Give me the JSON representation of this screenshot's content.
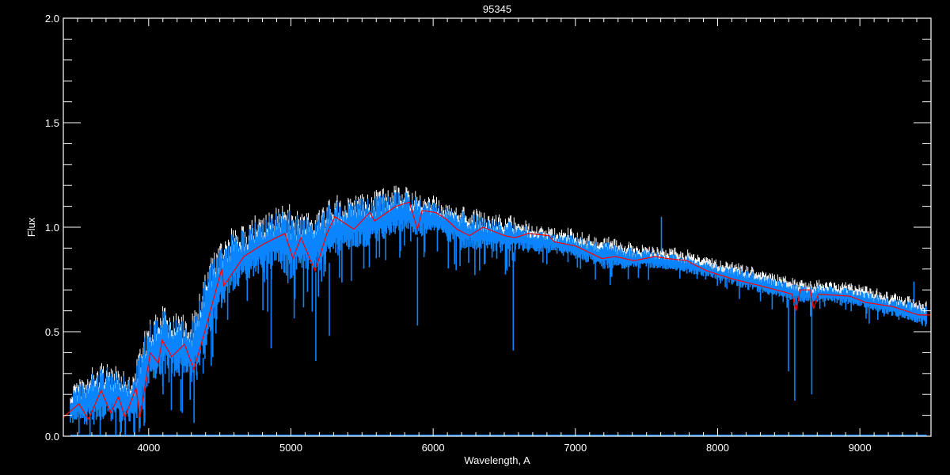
{
  "chart_data": {
    "type": "line",
    "title": "95345",
    "xlabel": "Wavelength, A",
    "ylabel": "Flux",
    "xlim": [
      3400,
      9500
    ],
    "ylim": [
      0,
      2.0
    ],
    "xticks": [
      4000,
      5000,
      6000,
      7000,
      8000,
      9000
    ],
    "xtick_labels": [
      "4000",
      "5000",
      "6000",
      "7000",
      "8000",
      "9000"
    ],
    "yticks": [
      0,
      0.5,
      1.0,
      1.5,
      2.0
    ],
    "ytick_labels": [
      "0.0",
      "0.5",
      "1.0",
      "1.5",
      "2.0"
    ],
    "grid": false,
    "colors": {
      "background": "#000000",
      "axes": "#ffffff",
      "observed": "#0a84ff",
      "reference": "#ffffff",
      "model": "#ff0000"
    },
    "observed_spectrum": {
      "color": "#0a84ff",
      "wavelength": [
        3450,
        3500,
        3600,
        3700,
        3800,
        3900,
        4000,
        4100,
        4200,
        4300,
        4400,
        4500,
        4600,
        4700,
        4800,
        4900,
        5000,
        5100,
        5200,
        5300,
        5400,
        5500,
        5600,
        5700,
        5800,
        5900,
        6000,
        6100,
        6200,
        6400,
        6600,
        6800,
        7000,
        7200,
        7400,
        7600,
        7800,
        8000,
        8200,
        8400,
        8600,
        8800,
        9000,
        9200,
        9400,
        9470
      ],
      "upper": [
        0.2,
        0.25,
        0.3,
        0.35,
        0.3,
        0.3,
        0.55,
        0.6,
        0.58,
        0.55,
        0.78,
        0.9,
        0.98,
        1.0,
        1.05,
        1.08,
        1.08,
        1.05,
        1.08,
        1.12,
        1.14,
        1.15,
        1.15,
        1.17,
        1.17,
        1.14,
        1.12,
        1.1,
        1.08,
        1.04,
        1.02,
        0.98,
        0.96,
        0.93,
        0.9,
        0.88,
        0.86,
        0.82,
        0.8,
        0.75,
        0.72,
        0.72,
        0.7,
        0.66,
        0.64,
        0.62
      ],
      "lower": [
        0.05,
        0.06,
        0.05,
        0.08,
        0.05,
        0.05,
        0.25,
        0.3,
        0.28,
        0.25,
        0.4,
        0.6,
        0.7,
        0.75,
        0.78,
        0.8,
        0.75,
        0.8,
        0.78,
        0.85,
        0.88,
        0.9,
        0.92,
        0.95,
        0.98,
        0.95,
        0.98,
        0.93,
        0.9,
        0.88,
        0.88,
        0.88,
        0.85,
        0.8,
        0.8,
        0.8,
        0.78,
        0.75,
        0.7,
        0.67,
        0.64,
        0.64,
        0.62,
        0.58,
        0.54,
        0.52
      ],
      "deep_lines": [
        [
          3933,
          0.02
        ],
        [
          3968,
          0.05
        ],
        [
          4101,
          0.2
        ],
        [
          4226,
          0.12
        ],
        [
          4340,
          0.27
        ],
        [
          4383,
          0.3
        ],
        [
          4861,
          0.42
        ],
        [
          5175,
          0.36
        ],
        [
          5270,
          0.48
        ],
        [
          5890,
          0.53
        ],
        [
          6563,
          0.41
        ],
        [
          8498,
          0.31
        ],
        [
          8542,
          0.17
        ],
        [
          8662,
          0.2
        ]
      ],
      "spikes": [
        [
          7605,
          1.05
        ],
        [
          9380,
          0.74
        ]
      ],
      "zero_level_range": [
        3450,
        9470
      ]
    },
    "model": {
      "color": "#ff0000",
      "points": [
        [
          3400,
          0.09
        ],
        [
          3450,
          0.12
        ],
        [
          3510,
          0.155
        ],
        [
          3577,
          0.08
        ],
        [
          3666,
          0.22
        ],
        [
          3733,
          0.11
        ],
        [
          3788,
          0.19
        ],
        [
          3833,
          0.09
        ],
        [
          3911,
          0.23
        ],
        [
          3939,
          0.09
        ],
        [
          4011,
          0.4
        ],
        [
          4067,
          0.35
        ],
        [
          4095,
          0.46
        ],
        [
          4162,
          0.38
        ],
        [
          4251,
          0.44
        ],
        [
          4318,
          0.32
        ],
        [
          4390,
          0.49
        ],
        [
          4513,
          0.8
        ],
        [
          4529,
          0.72
        ],
        [
          4669,
          0.86
        ],
        [
          4808,
          0.92
        ],
        [
          4958,
          0.97
        ],
        [
          5014,
          0.85
        ],
        [
          5070,
          0.95
        ],
        [
          5170,
          0.79
        ],
        [
          5253,
          0.97
        ],
        [
          5309,
          1.05
        ],
        [
          5443,
          0.99
        ],
        [
          5554,
          1.07
        ],
        [
          5588,
          1.03
        ],
        [
          5738,
          1.1
        ],
        [
          5833,
          1.12
        ],
        [
          5889,
          0.99
        ],
        [
          5922,
          1.08
        ],
        [
          6017,
          1.07
        ],
        [
          6089,
          1.04
        ],
        [
          6167,
          0.99
        ],
        [
          6256,
          0.96
        ],
        [
          6351,
          1.0
        ],
        [
          6501,
          0.96
        ],
        [
          6574,
          0.95
        ],
        [
          6668,
          0.97
        ],
        [
          6813,
          0.96
        ],
        [
          6852,
          0.93
        ],
        [
          7003,
          0.91
        ],
        [
          7187,
          0.85
        ],
        [
          7281,
          0.86
        ],
        [
          7410,
          0.84
        ],
        [
          7560,
          0.86
        ],
        [
          7649,
          0.85
        ],
        [
          7783,
          0.84
        ],
        [
          7838,
          0.82
        ],
        [
          7928,
          0.79
        ],
        [
          8117,
          0.75
        ],
        [
          8301,
          0.72
        ],
        [
          8524,
          0.68
        ],
        [
          8552,
          0.6
        ],
        [
          8580,
          0.7
        ],
        [
          8652,
          0.7
        ],
        [
          8674,
          0.61
        ],
        [
          8708,
          0.68
        ],
        [
          8930,
          0.67
        ],
        [
          9042,
          0.64
        ],
        [
          9231,
          0.62
        ],
        [
          9415,
          0.58
        ],
        [
          9500,
          0.58
        ]
      ]
    }
  }
}
